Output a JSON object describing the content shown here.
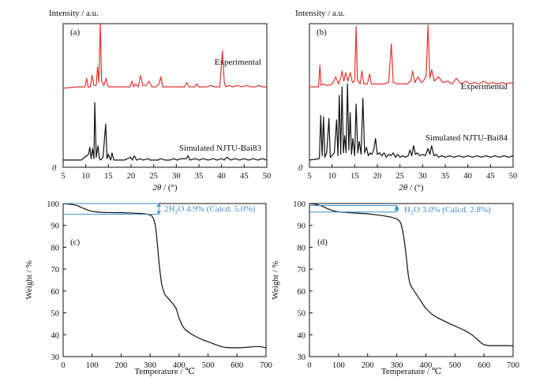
{
  "chart_data": [
    {
      "panel": "(a)",
      "type": "line",
      "ylabel": "Intensity / a.u.",
      "xlabel_italic": "2θ",
      "xlabel_rest": " / (°)",
      "xlim": [
        5,
        50
      ],
      "xticks": [
        5,
        10,
        15,
        20,
        25,
        30,
        35,
        40,
        45,
        50
      ],
      "origin_label": "0",
      "y_ticks_shown": false,
      "series": [
        {
          "name": "Experimental",
          "color": "#e8332f",
          "baseline": 0.55,
          "x": [
            5,
            8,
            9.8,
            10.2,
            10.5,
            11.0,
            11.4,
            11.8,
            12.3,
            12.6,
            12.9,
            13.2,
            13.5,
            14.0,
            14.5,
            14.8,
            15.2,
            16,
            18,
            19.8,
            20.2,
            20.6,
            21.0,
            21.6,
            22.1,
            22.6,
            23.3,
            24.0,
            24.6,
            25.5,
            26.2,
            26.6,
            27.0,
            28.5,
            30,
            31.8,
            32.3,
            32.8,
            34.0,
            34.5,
            35.0,
            36.8,
            37.6,
            38.4,
            39.6,
            40.2,
            40.6,
            41.0,
            41.6,
            42.5,
            43.5,
            44.5,
            45.5,
            46.5,
            47.5,
            48.3,
            49.0,
            50
          ],
          "y": [
            0.55,
            0.56,
            0.56,
            0.62,
            0.56,
            0.56,
            0.64,
            0.57,
            0.57,
            0.7,
            0.59,
            1.0,
            0.6,
            0.57,
            0.62,
            0.57,
            0.56,
            0.56,
            0.56,
            0.56,
            0.6,
            0.56,
            0.58,
            0.56,
            0.64,
            0.57,
            0.57,
            0.6,
            0.56,
            0.56,
            0.58,
            0.63,
            0.56,
            0.56,
            0.56,
            0.56,
            0.59,
            0.56,
            0.56,
            0.58,
            0.56,
            0.56,
            0.57,
            0.56,
            0.56,
            0.81,
            0.59,
            0.56,
            0.57,
            0.56,
            0.57,
            0.56,
            0.57,
            0.56,
            0.56,
            0.57,
            0.56,
            0.56
          ]
        },
        {
          "name": "Simulated NJTU-Bai83",
          "color": "#111111",
          "baseline": 0.05,
          "x": [
            5,
            9,
            10.6,
            10.9,
            11.2,
            11.5,
            11.8,
            12.0,
            12.3,
            12.7,
            13.0,
            13.3,
            13.8,
            14.4,
            14.7,
            15.0,
            15.5,
            15.8,
            16.2,
            17,
            18.5,
            19.9,
            20.3,
            20.7,
            21.2,
            22.0,
            22.6,
            23.8,
            24.2,
            25.0,
            26.0,
            26.5,
            27.5,
            28.6,
            29.4,
            30.2,
            31.0,
            32.2,
            32.6,
            33.0,
            34.2,
            35.0,
            36.0,
            37.0,
            38.2,
            39.0,
            40.0,
            40.6,
            41.2,
            42.0,
            43.0,
            44.0,
            45.0,
            46.0,
            47.0,
            48.0,
            49.0,
            50
          ],
          "y": [
            0.05,
            0.05,
            0.09,
            0.14,
            0.06,
            0.13,
            0.06,
            0.45,
            0.07,
            0.15,
            0.06,
            0.05,
            0.07,
            0.3,
            0.06,
            0.09,
            0.05,
            0.1,
            0.05,
            0.05,
            0.05,
            0.07,
            0.05,
            0.08,
            0.05,
            0.06,
            0.05,
            0.06,
            0.05,
            0.05,
            0.05,
            0.06,
            0.05,
            0.05,
            0.06,
            0.05,
            0.06,
            0.06,
            0.08,
            0.05,
            0.06,
            0.05,
            0.06,
            0.05,
            0.06,
            0.05,
            0.06,
            0.05,
            0.07,
            0.05,
            0.06,
            0.05,
            0.06,
            0.05,
            0.06,
            0.05,
            0.06,
            0.05
          ]
        }
      ]
    },
    {
      "panel": "(b)",
      "type": "line",
      "ylabel": "Intensity / a.u.",
      "xlabel_italic": "2θ",
      "xlabel_rest": " / (°)",
      "xlim": [
        5,
        50
      ],
      "xticks": [
        5,
        10,
        15,
        20,
        25,
        30,
        35,
        40,
        45,
        50
      ],
      "origin_label": "0",
      "y_ticks_shown": false,
      "series": [
        {
          "name": "Experimental",
          "color": "#e8332f",
          "baseline": 0.56,
          "x": [
            5,
            7,
            7.3,
            7.6,
            8.0,
            9.0,
            10.0,
            10.4,
            10.8,
            11.4,
            11.9,
            12.2,
            12.6,
            13.0,
            13.5,
            14.0,
            14.5,
            15.0,
            15.3,
            15.6,
            16.2,
            16.6,
            17.0,
            17.8,
            18.3,
            18.7,
            19.5,
            20.5,
            21.5,
            22.5,
            23.1,
            23.5,
            24.5,
            25.5,
            26.5,
            27.4,
            27.8,
            28.3,
            29.0,
            29.7,
            30.2,
            30.8,
            31.2,
            31.6,
            32.0,
            32.6,
            33.5,
            34.5,
            35.5,
            36.5,
            37.5,
            38.5,
            39.5,
            40.5,
            41.5,
            42.5,
            43.5,
            44.5,
            45.5,
            46.5,
            47.5,
            48.5,
            49.5,
            50
          ],
          "y": [
            0.56,
            0.56,
            0.71,
            0.57,
            0.58,
            0.57,
            0.58,
            0.6,
            0.63,
            0.58,
            0.62,
            0.67,
            0.6,
            0.66,
            0.6,
            0.66,
            0.59,
            0.6,
            0.98,
            0.61,
            0.58,
            0.67,
            0.58,
            0.58,
            0.65,
            0.58,
            0.58,
            0.58,
            0.58,
            0.59,
            0.86,
            0.59,
            0.58,
            0.58,
            0.58,
            0.6,
            0.67,
            0.59,
            0.63,
            0.59,
            0.6,
            0.64,
            0.99,
            0.62,
            0.68,
            0.6,
            0.63,
            0.59,
            0.6,
            0.58,
            0.62,
            0.58,
            0.6,
            0.58,
            0.59,
            0.58,
            0.6,
            0.58,
            0.59,
            0.58,
            0.59,
            0.58,
            0.59,
            0.58
          ]
        },
        {
          "name": "Simulated NJTU-Bai84",
          "color": "#111111",
          "baseline": 0.05,
          "x": [
            5,
            7.2,
            7.5,
            7.8,
            8.1,
            8.4,
            8.8,
            9.3,
            9.6,
            10.0,
            10.5,
            11.0,
            11.3,
            11.6,
            11.9,
            12.2,
            12.5,
            12.8,
            13.1,
            13.4,
            13.7,
            14.0,
            14.3,
            14.6,
            15.0,
            15.3,
            15.7,
            16.0,
            16.4,
            16.8,
            17.2,
            17.6,
            18.0,
            18.4,
            18.8,
            19.2,
            19.6,
            20.0,
            20.5,
            21.0,
            21.5,
            22.0,
            22.5,
            23.0,
            23.5,
            24.0,
            24.5,
            25.0,
            25.6,
            26.2,
            26.8,
            27.2,
            27.6,
            28.0,
            28.4,
            28.8,
            29.4,
            30.0,
            30.6,
            31.2,
            31.6,
            32.0,
            32.5,
            33.0,
            33.6,
            34.2,
            35.0,
            36.0,
            37.0,
            38.0,
            39.0,
            40.0,
            41.0,
            42.0,
            43.0,
            44.0,
            45.0,
            46.0,
            47.0,
            48.0,
            49.0,
            50
          ],
          "y": [
            0.05,
            0.06,
            0.36,
            0.08,
            0.35,
            0.07,
            0.1,
            0.34,
            0.07,
            0.08,
            0.1,
            0.33,
            0.08,
            0.5,
            0.09,
            0.56,
            0.1,
            0.22,
            0.1,
            0.58,
            0.12,
            0.38,
            0.09,
            0.2,
            0.08,
            0.44,
            0.1,
            0.18,
            0.09,
            0.48,
            0.1,
            0.14,
            0.08,
            0.1,
            0.09,
            0.12,
            0.2,
            0.09,
            0.1,
            0.08,
            0.1,
            0.07,
            0.09,
            0.08,
            0.1,
            0.07,
            0.09,
            0.07,
            0.08,
            0.07,
            0.08,
            0.12,
            0.08,
            0.15,
            0.09,
            0.1,
            0.08,
            0.09,
            0.08,
            0.13,
            0.09,
            0.15,
            0.08,
            0.09,
            0.07,
            0.08,
            0.07,
            0.08,
            0.07,
            0.08,
            0.07,
            0.08,
            0.07,
            0.08,
            0.07,
            0.08,
            0.07,
            0.08,
            0.07,
            0.08,
            0.07,
            0.08
          ]
        }
      ]
    },
    {
      "panel": "(c)",
      "type": "line",
      "xlabel": "Temperature / ℃",
      "ylabel": "Weight / %",
      "xlim": [
        0,
        700
      ],
      "ylim": [
        30,
        100
      ],
      "xticks": [
        0,
        100,
        200,
        300,
        400,
        500,
        600,
        700
      ],
      "yticks": [
        30,
        40,
        50,
        60,
        70,
        80,
        90,
        100
      ],
      "annotation": {
        "parts": [
          "2H",
          "2",
          "O 4.9% (Calcd. 5.0%)"
        ],
        "color": "#3a8fd0",
        "y_top": 100,
        "y_bottom": 95.1,
        "x_start": 0,
        "x_end": 330
      },
      "series": [
        {
          "name": "",
          "color": "#111111",
          "x": [
            0,
            30,
            50,
            70,
            90,
            110,
            130,
            150,
            200,
            250,
            280,
            295,
            305,
            312,
            318,
            322,
            326,
            330,
            335,
            340,
            345,
            350,
            360,
            370,
            380,
            390,
            400,
            410,
            420,
            440,
            460,
            480,
            500,
            520,
            540,
            560,
            580,
            600,
            620,
            640,
            660,
            680,
            700
          ],
          "y": [
            100,
            99.6,
            99.0,
            97.8,
            96.8,
            96.2,
            96.0,
            95.9,
            95.8,
            95.6,
            95.3,
            95.0,
            94.5,
            93,
            90,
            86,
            80,
            74,
            68,
            63,
            60.5,
            58.5,
            57,
            55.5,
            54.0,
            52,
            47.5,
            44.5,
            42.5,
            40.5,
            39.0,
            37.8,
            36.8,
            35.8,
            34.8,
            34.2,
            34.0,
            34.0,
            34.1,
            34.3,
            34.6,
            34.6,
            34.0
          ]
        }
      ]
    },
    {
      "panel": "(d)",
      "type": "line",
      "xlabel": "Temperature / ℃",
      "ylabel": "Weight / %",
      "xlim": [
        0,
        700
      ],
      "ylim": [
        30,
        100
      ],
      "xticks": [
        0,
        100,
        200,
        300,
        400,
        500,
        600,
        700
      ],
      "yticks": [
        30,
        40,
        50,
        60,
        70,
        80,
        90,
        100
      ],
      "annotation": {
        "parts": [
          "H",
          "2",
          "O 3.0% (Calcd. 2.8%)"
        ],
        "color": "#3a8fd0",
        "y_top": 99.1,
        "y_bottom": 96.1,
        "x_start": 0,
        "x_end": 300
      },
      "series": [
        {
          "name": "",
          "color": "#111111",
          "x": [
            0,
            20,
            40,
            60,
            80,
            100,
            120,
            150,
            200,
            250,
            280,
            300,
            310,
            315,
            320,
            325,
            330,
            335,
            340,
            345,
            350,
            355,
            360,
            370,
            380,
            390,
            400,
            420,
            440,
            460,
            480,
            500,
            520,
            540,
            560,
            580,
            590,
            600,
            620,
            640,
            660,
            680,
            700
          ],
          "y": [
            100,
            99.7,
            99.0,
            97.8,
            96.7,
            96.2,
            96.0,
            95.7,
            95.3,
            94.5,
            93.8,
            93.0,
            92.0,
            90.5,
            88,
            84,
            79,
            73,
            67,
            63.5,
            62,
            61,
            60.0,
            58.0,
            56.0,
            54.0,
            52.0,
            49.5,
            47.8,
            46.5,
            45.2,
            44.0,
            42.8,
            41.5,
            39.8,
            37.5,
            36.2,
            35.4,
            35.0,
            35.0,
            35.0,
            35.0,
            34.9
          ]
        }
      ]
    }
  ]
}
